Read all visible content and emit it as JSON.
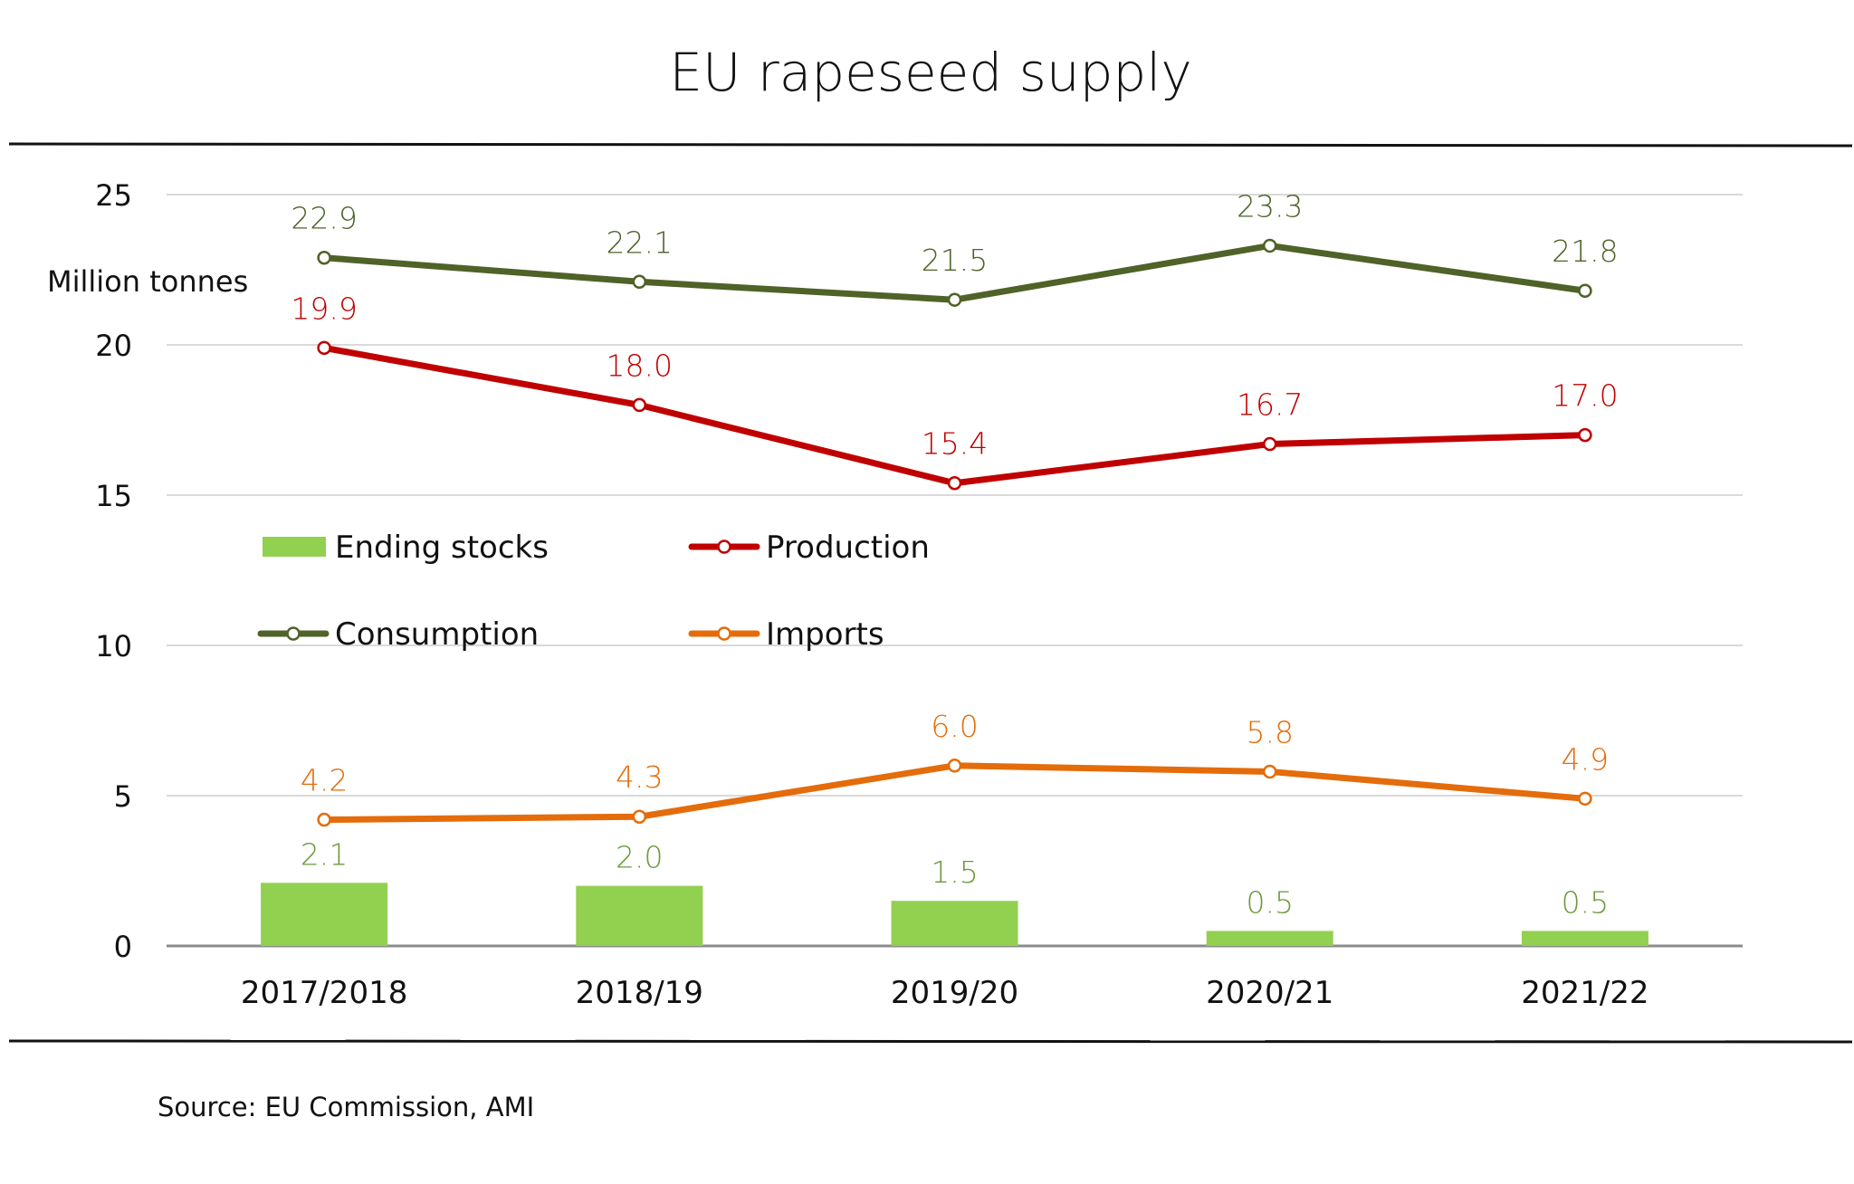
{
  "chart_data": {
    "type": "line",
    "title": "EU rapeseed supply",
    "ylabel": "Million tonnes",
    "xlabel": "",
    "ylim": [
      0,
      25
    ],
    "yticks": [
      0,
      5,
      10,
      15,
      20,
      25
    ],
    "ytick_labels": [
      "0",
      "5",
      "10",
      "15",
      "20",
      "25"
    ],
    "grid": true,
    "categories": [
      "2017/2018",
      "2018/19",
      "2019/20",
      "2020/21",
      "2021/22"
    ],
    "series": [
      {
        "name": "Ending stocks",
        "type": "bar",
        "color": "#92d050",
        "label_color": "#6a9a3a",
        "values": [
          2.1,
          2.0,
          1.5,
          0.5,
          0.5
        ],
        "labels": [
          "2.1",
          "2.0",
          "1.5",
          "0.5",
          "0.5"
        ]
      },
      {
        "name": "Production",
        "type": "line",
        "color": "#c00000",
        "label_color": "#c00000",
        "values": [
          19.9,
          18.0,
          15.4,
          16.7,
          17.0
        ],
        "labels": [
          "19.9",
          "18.0",
          "15.4",
          "16.7",
          "17.0"
        ]
      },
      {
        "name": "Consumption",
        "type": "line",
        "color": "#4f6228",
        "label_color": "#4f6228",
        "values": [
          22.9,
          22.1,
          21.5,
          23.3,
          21.8
        ],
        "labels": [
          "22.9",
          "22.1",
          "21.5",
          "23.3",
          "21.8"
        ]
      },
      {
        "name": "Imports",
        "type": "line",
        "color": "#e46c0a",
        "label_color": "#e46c0a",
        "values": [
          4.2,
          4.3,
          6.0,
          5.8,
          4.9
        ],
        "labels": [
          "4.2",
          "4.3",
          "6.0",
          "5.8",
          "4.9"
        ]
      }
    ],
    "legend": {
      "placement": "center",
      "entries": [
        "Ending stocks",
        "Production",
        "Consumption",
        "Imports"
      ]
    },
    "source": "Source: EU Commission, AMI"
  }
}
